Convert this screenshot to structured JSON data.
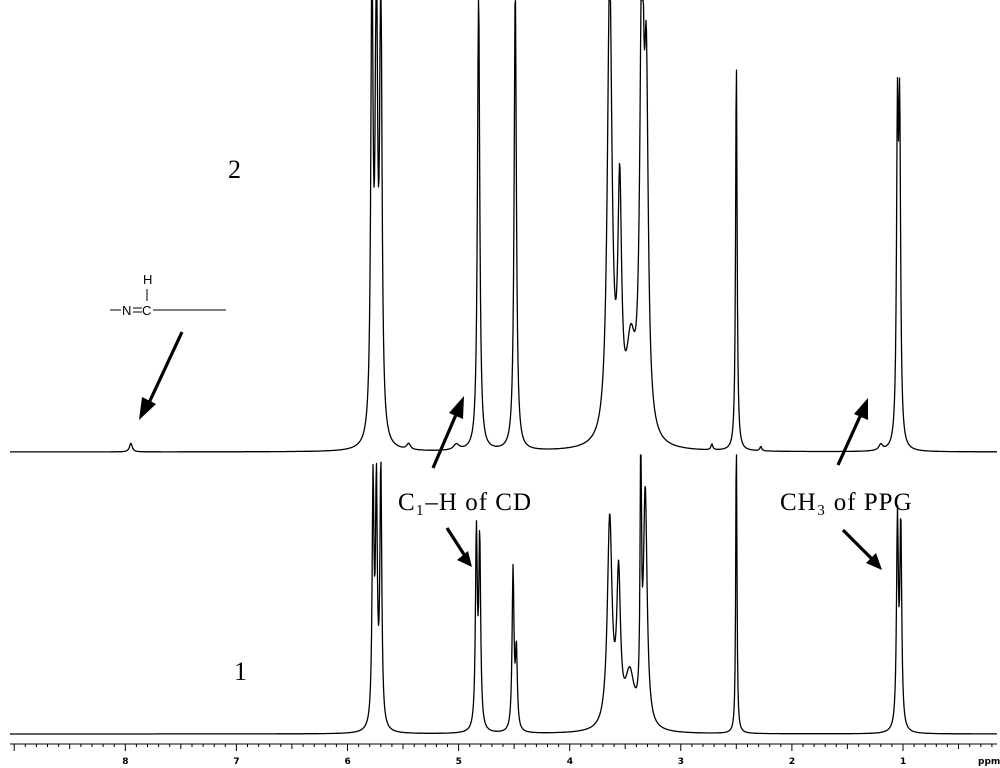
{
  "chart_data": {
    "type": "line",
    "x_axis": {
      "reversed": true,
      "range": [
        9.0,
        0.0
      ],
      "ticks": [
        8,
        7,
        6,
        5,
        4,
        3,
        2,
        1
      ],
      "tick_labels": [
        "8",
        "7",
        "6",
        "5",
        "4",
        "3",
        "2",
        "1"
      ],
      "unit": "ppm"
    },
    "series": [
      {
        "name": "2",
        "peaks": [
          {
            "ppm": 7.95,
            "h": 0.03,
            "w": 0.015
          },
          {
            "ppm": 5.78,
            "h": 1.6,
            "w": 0.012
          },
          {
            "ppm": 5.74,
            "h": 1.6,
            "w": 0.012
          },
          {
            "ppm": 5.7,
            "h": 1.6,
            "w": 0.012
          },
          {
            "ppm": 5.45,
            "h": 0.02,
            "w": 0.02
          },
          {
            "ppm": 5.02,
            "h": 0.02,
            "w": 0.03
          },
          {
            "ppm": 4.82,
            "h": 1.6,
            "w": 0.012
          },
          {
            "ppm": 4.49,
            "h": 1.6,
            "w": 0.012
          },
          {
            "ppm": 3.64,
            "h": 1.6,
            "w": 0.025
          },
          {
            "ppm": 3.55,
            "h": 0.8,
            "w": 0.02
          },
          {
            "ppm": 3.45,
            "h": 0.3,
            "w": 0.05
          },
          {
            "ppm": 3.35,
            "h": 1.6,
            "w": 0.02
          },
          {
            "ppm": 3.31,
            "h": 1.1,
            "w": 0.02
          },
          {
            "ppm": 2.5,
            "h": 1.35,
            "w": 0.008
          },
          {
            "ppm": 2.72,
            "h": 0.02,
            "w": 0.01
          },
          {
            "ppm": 2.28,
            "h": 0.015,
            "w": 0.01
          },
          {
            "ppm": 1.05,
            "h": 1.07,
            "w": 0.01
          },
          {
            "ppm": 1.03,
            "h": 1.07,
            "w": 0.01
          },
          {
            "ppm": 1.2,
            "h": 0.02,
            "w": 0.02
          }
        ]
      },
      {
        "name": "1",
        "peaks": [
          {
            "ppm": 5.77,
            "h": 0.93,
            "w": 0.01
          },
          {
            "ppm": 5.74,
            "h": 0.9,
            "w": 0.01
          },
          {
            "ppm": 5.7,
            "h": 1.0,
            "w": 0.01
          },
          {
            "ppm": 4.84,
            "h": 0.75,
            "w": 0.01
          },
          {
            "ppm": 4.81,
            "h": 0.72,
            "w": 0.01
          },
          {
            "ppm": 4.51,
            "h": 0.62,
            "w": 0.01
          },
          {
            "ppm": 4.48,
            "h": 0.3,
            "w": 0.01
          },
          {
            "ppm": 3.64,
            "h": 0.8,
            "w": 0.025
          },
          {
            "ppm": 3.56,
            "h": 0.55,
            "w": 0.02
          },
          {
            "ppm": 3.46,
            "h": 0.2,
            "w": 0.05
          },
          {
            "ppm": 3.36,
            "h": 1.25,
            "w": 0.006
          },
          {
            "ppm": 3.32,
            "h": 0.9,
            "w": 0.02
          },
          {
            "ppm": 2.5,
            "h": 1.24,
            "w": 0.006
          },
          {
            "ppm": 1.05,
            "h": 0.8,
            "w": 0.01
          },
          {
            "ppm": 1.02,
            "h": 0.78,
            "w": 0.01
          }
        ]
      }
    ],
    "annotations": [
      {
        "text": "C₁–H of CD",
        "ppm": 4.8
      },
      {
        "text": "CH₃ of PPG",
        "ppm": 1.04
      },
      {
        "text": "—N═C—",
        "note": "H",
        "ppm": 7.95
      }
    ],
    "grid": false,
    "legend": "none"
  },
  "labels": {
    "trace_top": "2",
    "trace_bottom": "1",
    "c1h": "C₁–H of CD",
    "ch3": "CH₃ of PPG",
    "imine_h": "H",
    "imine_n": "N",
    "imine_c": "C",
    "axis_unit": "ppm"
  }
}
